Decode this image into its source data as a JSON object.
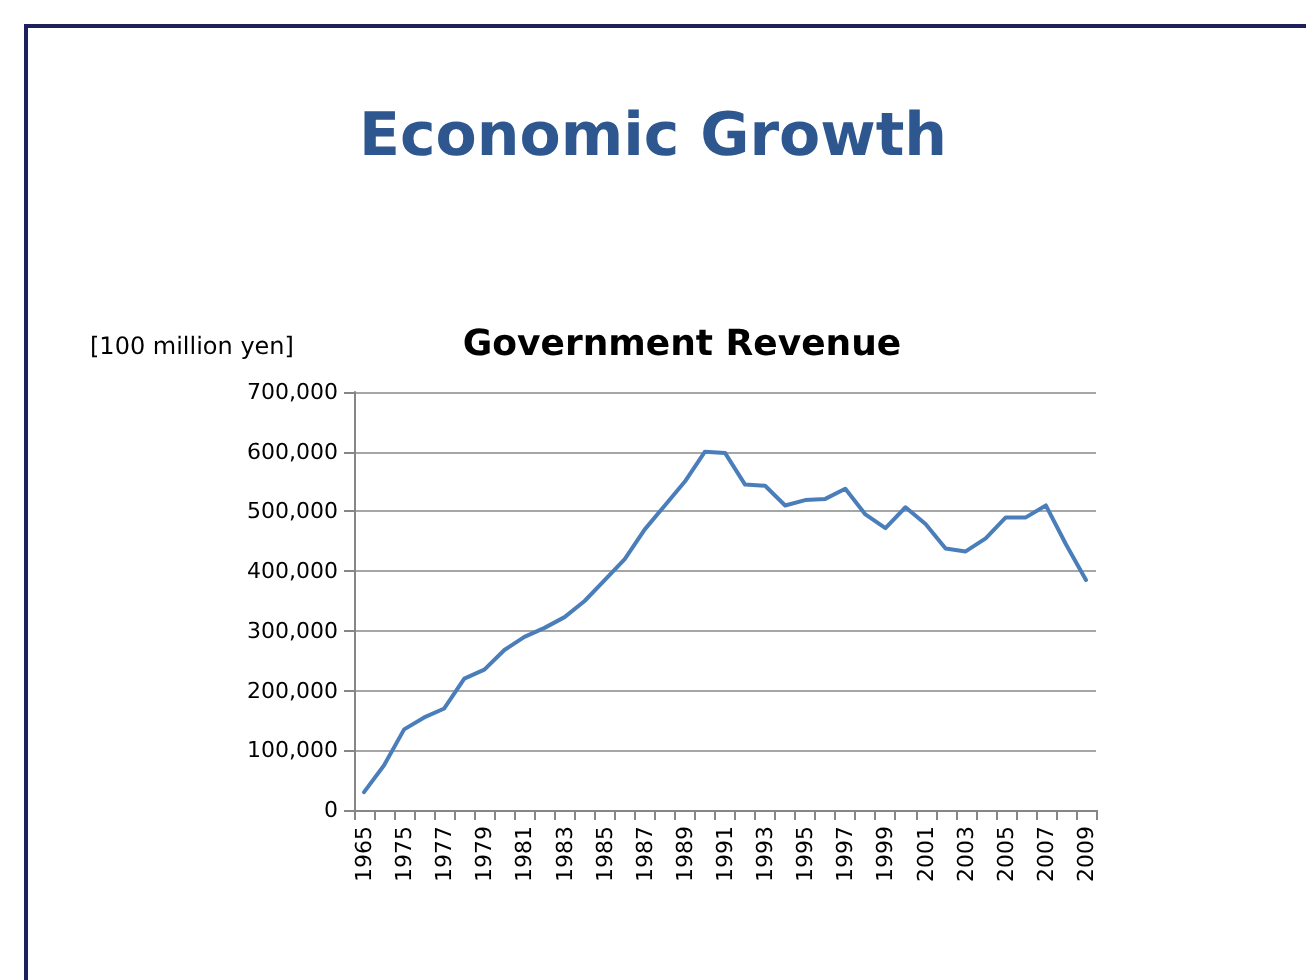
{
  "chart_data": {
    "type": "line",
    "title": "Economic Growth",
    "subtitle": "Government Revenue",
    "ylabel": "[100 million yen]",
    "categories": [
      "1965",
      null,
      "1975",
      null,
      "1977",
      null,
      "1979",
      null,
      "1981",
      null,
      "1983",
      null,
      "1985",
      null,
      "1987",
      null,
      "1989",
      null,
      "1991",
      null,
      "1993",
      null,
      "1995",
      null,
      "1997",
      null,
      "1999",
      null,
      "2001",
      null,
      "2003",
      null,
      "2005",
      null,
      "2007",
      null,
      "2009"
    ],
    "series": [
      {
        "color": "#4a7ebb",
        "values": [
          30000,
          75000,
          135000,
          155000,
          170000,
          220000,
          235000,
          268000,
          290000,
          305000,
          323000,
          350000,
          385000,
          420000,
          470000,
          510000,
          550000,
          600000,
          598000,
          545000,
          543000,
          510000,
          519000,
          521000,
          538000,
          495000,
          472000,
          507000,
          479000,
          438000,
          433000,
          455000,
          490000,
          490000,
          510000,
          445000,
          385000
        ]
      }
    ],
    "ylim": [
      0,
      700000
    ],
    "yticks": [
      0,
      {
        "value": 100000,
        "label": "100,000"
      },
      {
        "value": 200000,
        "label": "200,000"
      },
      {
        "value": 300000,
        "label": "300,000"
      },
      {
        "value": 400000,
        "label": "400,000"
      },
      {
        "value": 500000,
        "label": "500,000"
      },
      {
        "value": 600000,
        "label": "600,000"
      },
      {
        "value": 700000,
        "label": "700,000"
      }
    ],
    "grid": "y",
    "marker": "none",
    "line_style": "solid"
  }
}
